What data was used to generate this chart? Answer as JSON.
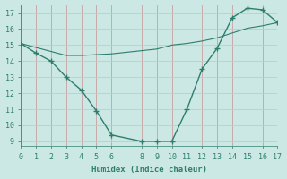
{
  "line1_x": [
    0,
    1,
    2,
    3,
    4,
    5,
    6,
    8,
    9,
    10,
    11,
    12,
    13,
    14,
    15,
    16,
    17
  ],
  "line1_y": [
    15.1,
    14.5,
    14.0,
    13.0,
    12.2,
    10.9,
    9.4,
    9.0,
    9.0,
    9.0,
    11.0,
    13.5,
    14.8,
    16.7,
    17.3,
    17.2,
    16.4
  ],
  "line2_x": [
    0,
    1,
    2,
    3,
    4,
    5,
    6,
    7,
    8,
    9,
    10,
    11,
    12,
    13,
    14,
    15,
    16,
    17
  ],
  "line2_y": [
    15.1,
    14.85,
    14.6,
    14.35,
    14.35,
    14.4,
    14.45,
    14.55,
    14.65,
    14.75,
    15.0,
    15.1,
    15.25,
    15.45,
    15.75,
    16.05,
    16.2,
    16.4
  ],
  "line_color": "#2e7d6e",
  "bg_color": "#cce8e4",
  "grid_color_v": "#c8a0a0",
  "grid_color_h": "#aed4ce",
  "xlabel": "Humidex (Indice chaleur)",
  "xlim": [
    0,
    17
  ],
  "ylim": [
    8.7,
    17.5
  ],
  "xticks": [
    0,
    1,
    2,
    3,
    4,
    5,
    6,
    8,
    9,
    10,
    11,
    12,
    13,
    14,
    15,
    16,
    17
  ],
  "yticks": [
    9,
    10,
    11,
    12,
    13,
    14,
    15,
    16,
    17
  ],
  "axis_fontsize": 6.5,
  "tick_fontsize": 6.0,
  "marker_size": 4,
  "lw1": 1.0,
  "lw2": 0.8
}
